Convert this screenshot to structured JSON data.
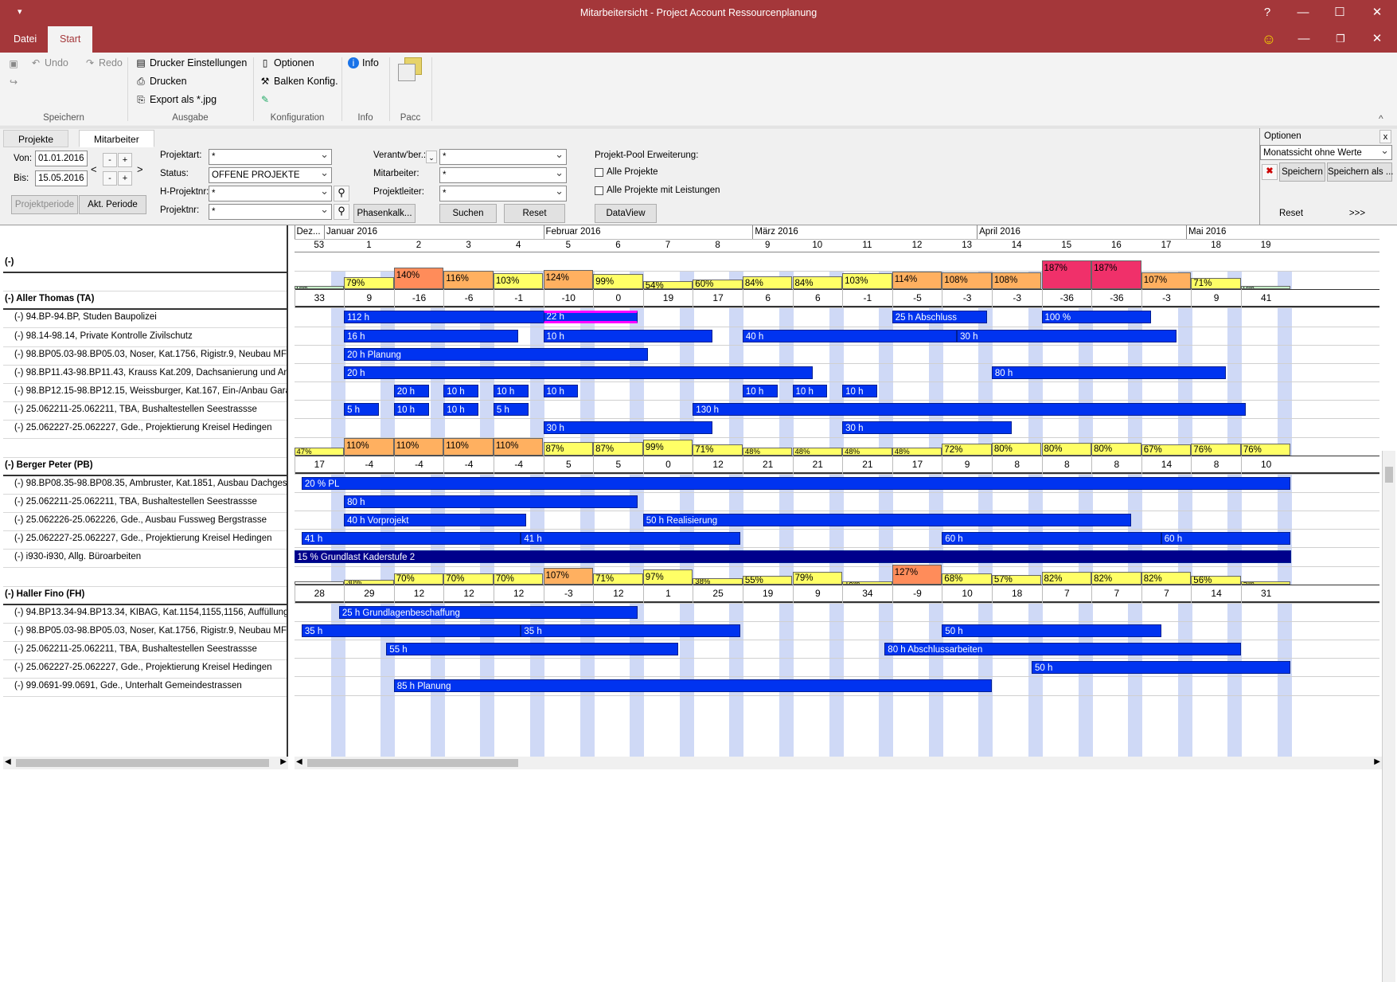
{
  "window": {
    "title": "Mitarbeitersicht  -  Project Account Ressourcenplanung",
    "help": "?",
    "min": "—",
    "max": "☐",
    "close": "✕",
    "sub_min": "—",
    "sub_restore": "❐",
    "sub_close": "✕",
    "quick": "▾"
  },
  "menu": {
    "tabs": [
      "Datei",
      "Start"
    ],
    "smiley": "☺"
  },
  "ribbon": {
    "undo": "Undo",
    "redo": "Redo",
    "print_settings": "Drucker Einstellungen",
    "print": "Drucken",
    "export": "Export als *.jpg",
    "options": "Optionen",
    "bar_config": "Balken Konfig.",
    "info": "Info",
    "groups": [
      "Speichern",
      "Ausgabe",
      "Konfiguration",
      "Info",
      "Pacc"
    ],
    "collapse": "^"
  },
  "filter": {
    "tabs": [
      "Projekte",
      "Mitarbeiter"
    ],
    "von_label": "Von:",
    "von": "01.01.2016",
    "bis_label": "Bis:",
    "bis": "15.05.2016",
    "minus": "-",
    "plus": "+",
    "prev": "<",
    "next": ">",
    "projektperiode": "Projektperiode",
    "akt_periode": "Akt. Periode",
    "projektart_label": "Projektart:",
    "projektart": "*",
    "status_label": "Status:",
    "status": "OFFENE PROJEKTE",
    "hprojektnr_label": "H-Projektnr:",
    "hprojektnr": "*",
    "projektnr_label": "Projektnr:",
    "projektnr": "*",
    "verantw_label": "Verantw'ber.:",
    "verantw": "*",
    "mitarbeiter_label": "Mitarbeiter:",
    "mitarbeiter": "*",
    "projektleiter_label": "Projektleiter:",
    "projektleiter": "*",
    "phasenkalk": "Phasenkalk...",
    "suchen": "Suchen",
    "reset": "Reset",
    "pool_title": "Projekt-Pool Erweiterung:",
    "alle_projekte": "Alle Projekte",
    "alle_leistungen": "Alle Projekte mit Leistungen",
    "dataview": "DataView"
  },
  "options": {
    "title": "Optionen",
    "close": "x",
    "view": "Monatssicht ohne Werte",
    "save": "Speichern",
    "save_as": "Speichern als ...",
    "reset": "Reset",
    "more": ">>>"
  },
  "timeline": {
    "months": [
      {
        "label": "Dez...",
        "col": 0
      },
      {
        "label": "Januar 2016",
        "col": 0.6
      },
      {
        "label": "Februar 2016",
        "col": 5
      },
      {
        "label": "März 2016",
        "col": 9.2
      },
      {
        "label": "April 2016",
        "col": 13.7
      },
      {
        "label": "Mai 2016",
        "col": 17.9
      }
    ],
    "weeks": [
      "53",
      "1",
      "2",
      "3",
      "4",
      "5",
      "6",
      "7",
      "8",
      "9",
      "10",
      "11",
      "12",
      "13",
      "14",
      "15",
      "16",
      "17",
      "18",
      "19"
    ]
  },
  "rows": [
    {
      "type": "group",
      "label": "(-)"
    },
    {
      "type": "util",
      "label": ""
    },
    {
      "type": "person",
      "label": "(-) Aller Thomas (TA)",
      "values": [
        "33",
        "9",
        "-16",
        "-6",
        "-1",
        "-10",
        "0",
        "19",
        "17",
        "6",
        "6",
        "-1",
        "-5",
        "-3",
        "-3",
        "-36",
        "-36",
        "-3",
        "9",
        "41"
      ]
    },
    {
      "type": "project",
      "label": "(-) 94.BP-94.BP, Studen Baupolizei"
    },
    {
      "type": "project",
      "label": "(-) 98.14-98.14, Private Kontrolle Zivilschutz"
    },
    {
      "type": "project",
      "label": "(-) 98.BP05.03-98.BP05.03, Noser, Kat.1756, Rigistr.9, Neubau MFH"
    },
    {
      "type": "project",
      "label": "(-) 98.BP11.43-98.BP11.43, Krauss Kat.209, Dachsanierung und Anb..."
    },
    {
      "type": "project",
      "label": "(-) 98.BP12.15-98.BP12.15, Weissburger, Kat.167, Ein-/Anbau Garage"
    },
    {
      "type": "project",
      "label": "(-) 25.062211-25.062211, TBA, Bushaltestellen Seestrassse"
    },
    {
      "type": "project",
      "label": "(-) 25.062227-25.062227, Gde., Projektierung Kreisel Hedingen"
    },
    {
      "type": "util",
      "label": ""
    },
    {
      "type": "person",
      "label": "(-) Berger Peter (PB)",
      "values": [
        "17",
        "-4",
        "-4",
        "-4",
        "-4",
        "5",
        "5",
        "0",
        "12",
        "21",
        "21",
        "21",
        "17",
        "9",
        "8",
        "8",
        "8",
        "14",
        "8",
        "10"
      ]
    },
    {
      "type": "project",
      "label": "(-) 98.BP08.35-98.BP08.35, Ambruster, Kat.1851, Ausbau Dachgesch..."
    },
    {
      "type": "project",
      "label": "(-) 25.062211-25.062211, TBA, Bushaltestellen Seestrassse"
    },
    {
      "type": "project",
      "label": "(-) 25.062226-25.062226, Gde., Ausbau Fussweg Bergstrasse"
    },
    {
      "type": "project",
      "label": "(-) 25.062227-25.062227, Gde., Projektierung Kreisel Hedingen"
    },
    {
      "type": "project",
      "label": "(-) i930-i930, Allg. Büroarbeiten"
    },
    {
      "type": "util",
      "label": ""
    },
    {
      "type": "person",
      "label": "(-) Haller Fino (FH)",
      "values": [
        "28",
        "29",
        "12",
        "12",
        "12",
        "-3",
        "12",
        "1",
        "25",
        "19",
        "9",
        "34",
        "-9",
        "10",
        "18",
        "7",
        "7",
        "7",
        "14",
        "31"
      ]
    },
    {
      "type": "project",
      "label": "(-) 94.BP13.34-94.BP13.34, KIBAG, Kat.1154,1155,1156, Auffüllung K..."
    },
    {
      "type": "project",
      "label": "(-) 98.BP05.03-98.BP05.03, Noser, Kat.1756, Rigistr.9, Neubau MFH"
    },
    {
      "type": "project",
      "label": "(-) 25.062211-25.062211, TBA, Bushaltestellen Seestrassse"
    },
    {
      "type": "project",
      "label": "(-) 25.062227-25.062227, Gde., Projektierung Kreisel Hedingen"
    },
    {
      "type": "project",
      "label": "(-) 99.0691-99.0691, Gde., Unterhalt Gemeindestrassen"
    }
  ],
  "utilization": [
    {
      "row": 1,
      "cells": [
        {
          "t": "0%",
          "v": 0,
          "c": "#c8f5c8"
        },
        {
          "t": "79%",
          "v": 79,
          "c": "#ffff66"
        },
        {
          "t": "140%",
          "v": 140,
          "c": "#ff8c5a"
        },
        {
          "t": "116%",
          "v": 116,
          "c": "#ffb060"
        },
        {
          "t": "103%",
          "v": 103,
          "c": "#ffff66"
        },
        {
          "t": "124%",
          "v": 124,
          "c": "#ffb060"
        },
        {
          "t": "99%",
          "v": 99,
          "c": "#ffff66"
        },
        {
          "t": "54%",
          "v": 54,
          "c": "#ffff66"
        },
        {
          "t": "60%",
          "v": 60,
          "c": "#ffff66"
        },
        {
          "t": "84%",
          "v": 84,
          "c": "#ffff66"
        },
        {
          "t": "84%",
          "v": 84,
          "c": "#ffff66"
        },
        {
          "t": "103%",
          "v": 103,
          "c": "#ffff66"
        },
        {
          "t": "114%",
          "v": 114,
          "c": "#ffb060"
        },
        {
          "t": "108%",
          "v": 108,
          "c": "#ffb060"
        },
        {
          "t": "108%",
          "v": 108,
          "c": "#ffb060"
        },
        {
          "t": "187%",
          "v": 187,
          "c": "#f0306a"
        },
        {
          "t": "187%",
          "v": 187,
          "c": "#f0306a"
        },
        {
          "t": "107%",
          "v": 107,
          "c": "#ffb060"
        },
        {
          "t": "71%",
          "v": 71,
          "c": "#ffff66"
        },
        {
          "t": "0%",
          "v": 0,
          "c": "#c8f5c8"
        }
      ]
    },
    {
      "row": 10,
      "cells": [
        {
          "t": "47%",
          "v": 47,
          "c": "#ffff66"
        },
        {
          "t": "110%",
          "v": 110,
          "c": "#ffb060"
        },
        {
          "t": "110%",
          "v": 110,
          "c": "#ffb060"
        },
        {
          "t": "110%",
          "v": 110,
          "c": "#ffb060"
        },
        {
          "t": "110%",
          "v": 110,
          "c": "#ffb060"
        },
        {
          "t": "87%",
          "v": 87,
          "c": "#ffff66"
        },
        {
          "t": "87%",
          "v": 87,
          "c": "#ffff66"
        },
        {
          "t": "99%",
          "v": 99,
          "c": "#ffff66"
        },
        {
          "t": "71%",
          "v": 71,
          "c": "#ffff66"
        },
        {
          "t": "48%",
          "v": 48,
          "c": "#ffff66"
        },
        {
          "t": "48%",
          "v": 48,
          "c": "#ffff66"
        },
        {
          "t": "48%",
          "v": 48,
          "c": "#ffff66"
        },
        {
          "t": "48%",
          "v": 48,
          "c": "#ffff66"
        },
        {
          "t": "72%",
          "v": 72,
          "c": "#ffff66"
        },
        {
          "t": "80%",
          "v": 80,
          "c": "#ffff66"
        },
        {
          "t": "80%",
          "v": 80,
          "c": "#ffff66"
        },
        {
          "t": "80%",
          "v": 80,
          "c": "#ffff66"
        },
        {
          "t": "67%",
          "v": 67,
          "c": "#ffff66"
        },
        {
          "t": "76%",
          "v": 76,
          "c": "#ffff66"
        },
        {
          "t": "76%",
          "v": 76,
          "c": "#ffff66"
        }
      ]
    },
    {
      "row": 17,
      "cells": [
        {
          "t": "",
          "v": 0,
          "c": "#ffffff"
        },
        {
          "t": "30%",
          "v": 30,
          "c": "#ffff66"
        },
        {
          "t": "70%",
          "v": 70,
          "c": "#ffff66"
        },
        {
          "t": "70%",
          "v": 70,
          "c": "#ffff66"
        },
        {
          "t": "70%",
          "v": 70,
          "c": "#ffff66"
        },
        {
          "t": "107%",
          "v": 107,
          "c": "#ffb060"
        },
        {
          "t": "71%",
          "v": 71,
          "c": "#ffff66"
        },
        {
          "t": "97%",
          "v": 97,
          "c": "#ffff66"
        },
        {
          "t": "38%",
          "v": 38,
          "c": "#ffff66"
        },
        {
          "t": "55%",
          "v": 55,
          "c": "#ffff66"
        },
        {
          "t": "79%",
          "v": 79,
          "c": "#ffff66"
        },
        {
          "t": "18%",
          "v": 18,
          "c": "#ffff66"
        },
        {
          "t": "127%",
          "v": 127,
          "c": "#ff8c5a"
        },
        {
          "t": "68%",
          "v": 68,
          "c": "#ffff66"
        },
        {
          "t": "57%",
          "v": 57,
          "c": "#ffff66"
        },
        {
          "t": "82%",
          "v": 82,
          "c": "#ffff66"
        },
        {
          "t": "82%",
          "v": 82,
          "c": "#ffff66"
        },
        {
          "t": "82%",
          "v": 82,
          "c": "#ffff66"
        },
        {
          "t": "56%",
          "v": 56,
          "c": "#ffff66"
        },
        {
          "t": "5%",
          "v": 5,
          "c": "#ffff66"
        }
      ]
    }
  ],
  "bars": [
    {
      "row": 3,
      "s": 1,
      "e": 5.4,
      "label": "112 h"
    },
    {
      "row": 3,
      "s": 5,
      "e": 6.9,
      "label": "22 h",
      "highlight": true
    },
    {
      "row": 3,
      "s": 12,
      "e": 13.9,
      "label": "25 h Abschluss"
    },
    {
      "row": 3,
      "s": 15,
      "e": 17.2,
      "label": "100 %"
    },
    {
      "row": 4,
      "s": 1,
      "e": 4.5,
      "label": "16 h"
    },
    {
      "row": 4,
      "s": 5,
      "e": 8.4,
      "label": "10 h"
    },
    {
      "row": 4,
      "s": 9,
      "e": 13.3,
      "label": "40 h"
    },
    {
      "row": 4,
      "s": 13.3,
      "e": 17.7,
      "label": "30 h"
    },
    {
      "row": 5,
      "s": 1,
      "e": 7.1,
      "label": "20 h Planung"
    },
    {
      "row": 6,
      "s": 1,
      "e": 10.4,
      "label": "20 h"
    },
    {
      "row": 6,
      "s": 14,
      "e": 18.7,
      "label": "80 h"
    },
    {
      "row": 7,
      "s": 2,
      "e": 2.7,
      "label": "20 h"
    },
    {
      "row": 7,
      "s": 3,
      "e": 3.7,
      "label": "10 h"
    },
    {
      "row": 7,
      "s": 4,
      "e": 4.7,
      "label": "10 h"
    },
    {
      "row": 7,
      "s": 5,
      "e": 5.7,
      "label": "10 h"
    },
    {
      "row": 7,
      "s": 9,
      "e": 9.7,
      "label": "10 h"
    },
    {
      "row": 7,
      "s": 10,
      "e": 10.7,
      "label": "10 h"
    },
    {
      "row": 7,
      "s": 11,
      "e": 11.7,
      "label": "10 h"
    },
    {
      "row": 8,
      "s": 1,
      "e": 1.7,
      "label": "5 h"
    },
    {
      "row": 8,
      "s": 2,
      "e": 2.7,
      "label": "10 h"
    },
    {
      "row": 8,
      "s": 3,
      "e": 3.7,
      "label": "10 h"
    },
    {
      "row": 8,
      "s": 4,
      "e": 4.7,
      "label": "5 h"
    },
    {
      "row": 8,
      "s": 8,
      "e": 19.1,
      "label": "130 h"
    },
    {
      "row": 9,
      "s": 5,
      "e": 8.4,
      "label": "30 h"
    },
    {
      "row": 9,
      "s": 11,
      "e": 14.4,
      "label": "30 h"
    },
    {
      "row": 12,
      "s": 0.15,
      "e": 20,
      "label": "20 % PL"
    },
    {
      "row": 13,
      "s": 1,
      "e": 6.9,
      "label": "80 h"
    },
    {
      "row": 14,
      "s": 1,
      "e": 4.65,
      "label": "40 h Vorprojekt"
    },
    {
      "row": 14,
      "s": 7,
      "e": 16.8,
      "label": "50 h Realisierung"
    },
    {
      "row": 15,
      "s": 0.15,
      "e": 4.55,
      "label": "41 h"
    },
    {
      "row": 15,
      "s": 4.55,
      "e": 8.95,
      "label": "41 h"
    },
    {
      "row": 15,
      "s": 13,
      "e": 17.4,
      "label": "60 h"
    },
    {
      "row": 15,
      "s": 17.4,
      "e": 20,
      "label": "60 h"
    },
    {
      "row": 16,
      "s": 0,
      "e": 20,
      "label": "15 % Grundlast Kaderstufe 2",
      "dark": true
    },
    {
      "row": 19,
      "s": 0.9,
      "e": 6.9,
      "label": "25 h Grundlagenbeschaffung"
    },
    {
      "row": 20,
      "s": 0.15,
      "e": 4.55,
      "label": "35 h"
    },
    {
      "row": 20,
      "s": 4.55,
      "e": 8.95,
      "label": "35 h"
    },
    {
      "row": 20,
      "s": 13,
      "e": 17.4,
      "label": "50 h"
    },
    {
      "row": 21,
      "s": 1.85,
      "e": 7.7,
      "label": "55 h"
    },
    {
      "row": 21,
      "s": 11.85,
      "e": 19,
      "label": "80 h Abschlussarbeiten"
    },
    {
      "row": 22,
      "s": 14.8,
      "e": 20,
      "label": "50 h"
    },
    {
      "row": 23,
      "s": 2,
      "e": 14,
      "label": "85 h Planung"
    }
  ]
}
